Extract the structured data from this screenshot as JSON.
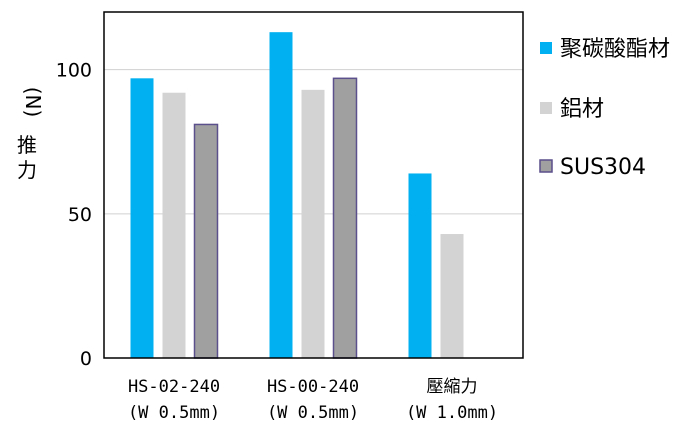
{
  "chart_data": {
    "type": "bar",
    "ylabel": "推力 (N)",
    "ylabel_unit": "(N)",
    "ylabel_text": "推力",
    "ylim": [
      0,
      120
    ],
    "yticks": [
      0,
      50,
      100
    ],
    "grid": true,
    "legend_position": "right",
    "categories": [
      {
        "line1": "HS-02-240",
        "line2": "(W 0.5mm)"
      },
      {
        "line1": "HS-00-240",
        "line2": "(W 0.5mm)"
      },
      {
        "line1": "壓縮力",
        "line2": "(W 1.0mm)"
      }
    ],
    "series": [
      {
        "name": "聚碳酸酯材",
        "color": "#00b0f0",
        "values": [
          97,
          113,
          64
        ]
      },
      {
        "name": "鋁材",
        "color": "#d3d3d3",
        "values": [
          92,
          93,
          43
        ]
      },
      {
        "name": "SUS304",
        "color": "#a0a0a0",
        "border": "#5b4f8c",
        "values": [
          81,
          97,
          null
        ]
      }
    ]
  }
}
